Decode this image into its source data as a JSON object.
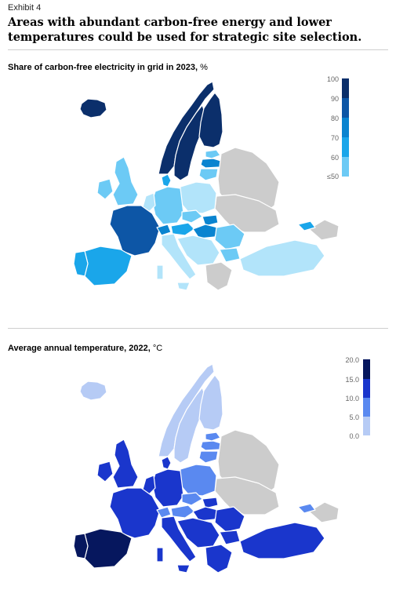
{
  "exhibit_label": "Exhibit 4",
  "headline": "Areas with abundant carbon-free energy and lower temperatures could be used for strategic site selection.",
  "map1": {
    "title": "Share of carbon-free electricity in grid in 2023,",
    "unit": "%",
    "legend_labels": [
      "100",
      "90",
      "80",
      "70",
      "60",
      "≤50"
    ],
    "legend_colors": [
      "#0b2f6b",
      "#0d56a6",
      "#0a84d0",
      "#1aa6ea",
      "#6ccaf5",
      "#b2e4fa"
    ],
    "no_data_color": "#cccccc"
  },
  "map2": {
    "title": "Average annual temperature, 2022,",
    "unit": "°C",
    "legend_labels": [
      "20.0",
      "15.0",
      "10.0",
      "5.0",
      "0.0"
    ],
    "legend_colors": [
      "#06175e",
      "#1a36cc",
      "#5a89f0",
      "#b6cbf5"
    ],
    "no_data_color": "#cccccc"
  }
}
